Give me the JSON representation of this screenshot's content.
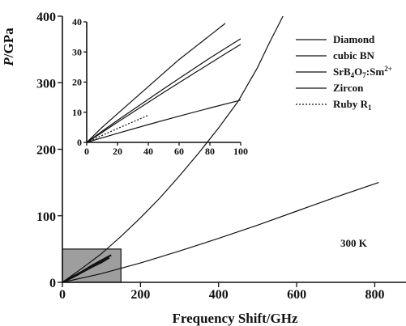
{
  "chart_data": [
    {
      "type": "line",
      "xlabel": "Frequency Shift/GHz",
      "ylabel_italic": "P",
      "ylabel_unit": "/GPa",
      "xlim": [
        0,
        880
      ],
      "ylim": [
        0,
        400
      ],
      "xticks": [
        0,
        200,
        400,
        600,
        800
      ],
      "yticks": [
        0,
        100,
        200,
        300,
        400
      ],
      "annotation": "300 K",
      "highlight_region": {
        "x": [
          0,
          150
        ],
        "y": [
          0,
          50
        ]
      },
      "series": [
        {
          "name": "Diamond",
          "x": [
            0,
            50,
            100,
            150,
            200,
            250,
            300,
            350,
            400,
            450,
            500,
            530,
            565
          ],
          "y": [
            0,
            21,
            43,
            69,
            97,
            127,
            160,
            195,
            232,
            272,
            323,
            360,
            400
          ]
        },
        {
          "name": "cubic BN",
          "x": [
            0,
            25,
            50,
            75,
            100,
            125
          ],
          "y": [
            0,
            8,
            16,
            25,
            33,
            41
          ]
        },
        {
          "name": "SrB4O7:Sm2+",
          "x": [
            0,
            25,
            50,
            75,
            100,
            120
          ],
          "y": [
            0,
            7,
            15,
            23,
            30,
            37
          ]
        },
        {
          "name": "Zircon",
          "x": [
            0,
            100,
            200,
            300,
            400,
            500,
            600,
            700,
            810
          ],
          "y": [
            0,
            13,
            29,
            47,
            66,
            86,
            107,
            128,
            150
          ]
        },
        {
          "name": "Ruby R1",
          "x": [
            0,
            10,
            20,
            30,
            40
          ],
          "y": [
            0,
            3,
            6,
            9,
            11
          ]
        }
      ]
    },
    {
      "type": "line",
      "role": "inset",
      "xlim": [
        0,
        100
      ],
      "ylim": [
        0,
        40
      ],
      "xticks": [
        0,
        20,
        40,
        60,
        80,
        100
      ],
      "yticks": [
        0,
        10,
        20,
        30,
        40
      ],
      "series": [
        {
          "name": "Diamond",
          "x": [
            0,
            5,
            10,
            20,
            30,
            40,
            50,
            60,
            70,
            80,
            90
          ],
          "y": [
            0,
            2.5,
            5,
            9.5,
            14,
            18.5,
            23,
            27.5,
            31.5,
            35.5,
            39.5
          ]
        },
        {
          "name": "cubic BN",
          "x": [
            0,
            10,
            20,
            30,
            40,
            50,
            60,
            70,
            80,
            90,
            100
          ],
          "y": [
            0,
            3.7,
            7.3,
            10.8,
            14.3,
            17.8,
            21.2,
            24.6,
            28,
            31.2,
            34.4
          ]
        },
        {
          "name": "SrB4O7:Sm2+",
          "x": [
            0,
            10,
            20,
            30,
            40,
            50,
            60,
            70,
            80,
            90,
            100
          ],
          "y": [
            0,
            3.3,
            6.7,
            10,
            13.3,
            16.6,
            19.8,
            23,
            26.2,
            29.4,
            32.5
          ]
        },
        {
          "name": "Zircon",
          "x": [
            0,
            20,
            40,
            60,
            80,
            100
          ],
          "y": [
            0,
            3,
            5.9,
            8.7,
            11.4,
            14
          ]
        },
        {
          "name": "Ruby R1",
          "x": [
            0,
            10,
            20,
            30,
            40
          ],
          "y": [
            0,
            2.3,
            4.6,
            6.8,
            9
          ]
        }
      ]
    }
  ],
  "legend": [
    {
      "text": "Diamond",
      "dash": ""
    },
    {
      "text": "cubic BN",
      "dash": ""
    },
    {
      "text": "SrB4O7:Sm2+",
      "dash": ""
    },
    {
      "text": "Zircon",
      "dash": ""
    },
    {
      "text": "Ruby R1",
      "dash": "2,2"
    }
  ],
  "colors": {
    "ink": "#111111",
    "highlight": "#9e9e9e"
  }
}
